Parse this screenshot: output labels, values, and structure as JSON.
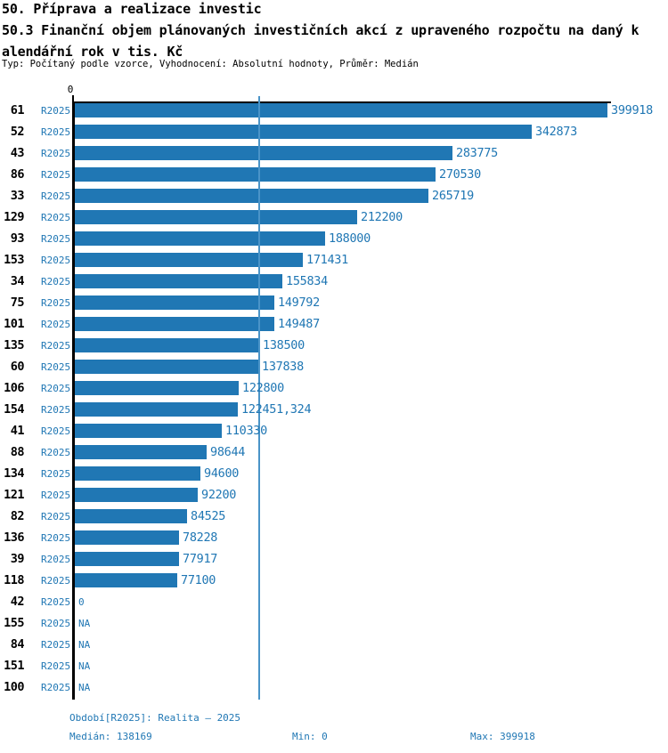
{
  "header": {
    "title_line1": "50. Příprava a realizace investic",
    "title_line2": "50.3 Finanční objem plánovaných investičních akcí z upraveného rozpočtu na daný k",
    "title_line3": "alendářní rok v tis. Kč",
    "meta": "Typ: Počítaný podle vzorce, Vyhodnocení: Absolutní hodnoty, Průměr: Medián"
  },
  "chart_data": {
    "type": "bar",
    "orientation": "horizontal",
    "axis_zero_label": "0",
    "x_max": 399918,
    "median_value": 138169,
    "bar_color": "#2077b4",
    "median_line_color": "#4a94c8",
    "series_name": "R2025",
    "rows": [
      {
        "id": "61",
        "series": "R2025",
        "value": 399918,
        "label": "399918"
      },
      {
        "id": "52",
        "series": "R2025",
        "value": 342873,
        "label": "342873"
      },
      {
        "id": "43",
        "series": "R2025",
        "value": 283775,
        "label": "283775"
      },
      {
        "id": "86",
        "series": "R2025",
        "value": 270530,
        "label": "270530"
      },
      {
        "id": "33",
        "series": "R2025",
        "value": 265719,
        "label": "265719"
      },
      {
        "id": "129",
        "series": "R2025",
        "value": 212200,
        "label": "212200"
      },
      {
        "id": "93",
        "series": "R2025",
        "value": 188000,
        "label": "188000"
      },
      {
        "id": "153",
        "series": "R2025",
        "value": 171431,
        "label": "171431"
      },
      {
        "id": "34",
        "series": "R2025",
        "value": 155834,
        "label": "155834"
      },
      {
        "id": "75",
        "series": "R2025",
        "value": 149792,
        "label": "149792"
      },
      {
        "id": "101",
        "series": "R2025",
        "value": 149487,
        "label": "149487"
      },
      {
        "id": "135",
        "series": "R2025",
        "value": 138500,
        "label": "138500"
      },
      {
        "id": "60",
        "series": "R2025",
        "value": 137838,
        "label": "137838"
      },
      {
        "id": "106",
        "series": "R2025",
        "value": 122800,
        "label": "122800"
      },
      {
        "id": "154",
        "series": "R2025",
        "value": 122451.324,
        "label": "122451,324"
      },
      {
        "id": "41",
        "series": "R2025",
        "value": 110330,
        "label": "110330"
      },
      {
        "id": "88",
        "series": "R2025",
        "value": 98644,
        "label": "98644"
      },
      {
        "id": "134",
        "series": "R2025",
        "value": 94600,
        "label": "94600"
      },
      {
        "id": "121",
        "series": "R2025",
        "value": 92200,
        "label": "92200"
      },
      {
        "id": "82",
        "series": "R2025",
        "value": 84525,
        "label": "84525"
      },
      {
        "id": "136",
        "series": "R2025",
        "value": 78228,
        "label": "78228"
      },
      {
        "id": "39",
        "series": "R2025",
        "value": 77917,
        "label": "77917"
      },
      {
        "id": "118",
        "series": "R2025",
        "value": 77100,
        "label": "77100"
      },
      {
        "id": "42",
        "series": "R2025",
        "value": 0,
        "label": "0"
      },
      {
        "id": "155",
        "series": "R2025",
        "value": null,
        "label": "NA"
      },
      {
        "id": "84",
        "series": "R2025",
        "value": null,
        "label": "NA"
      },
      {
        "id": "151",
        "series": "R2025",
        "value": null,
        "label": "NA"
      },
      {
        "id": "100",
        "series": "R2025",
        "value": null,
        "label": "NA"
      }
    ]
  },
  "footer": {
    "period": "Období[R2025]: Realita – 2025",
    "median": "Medián: 138169",
    "min": "Min: 0",
    "max": "Max: 399918"
  }
}
